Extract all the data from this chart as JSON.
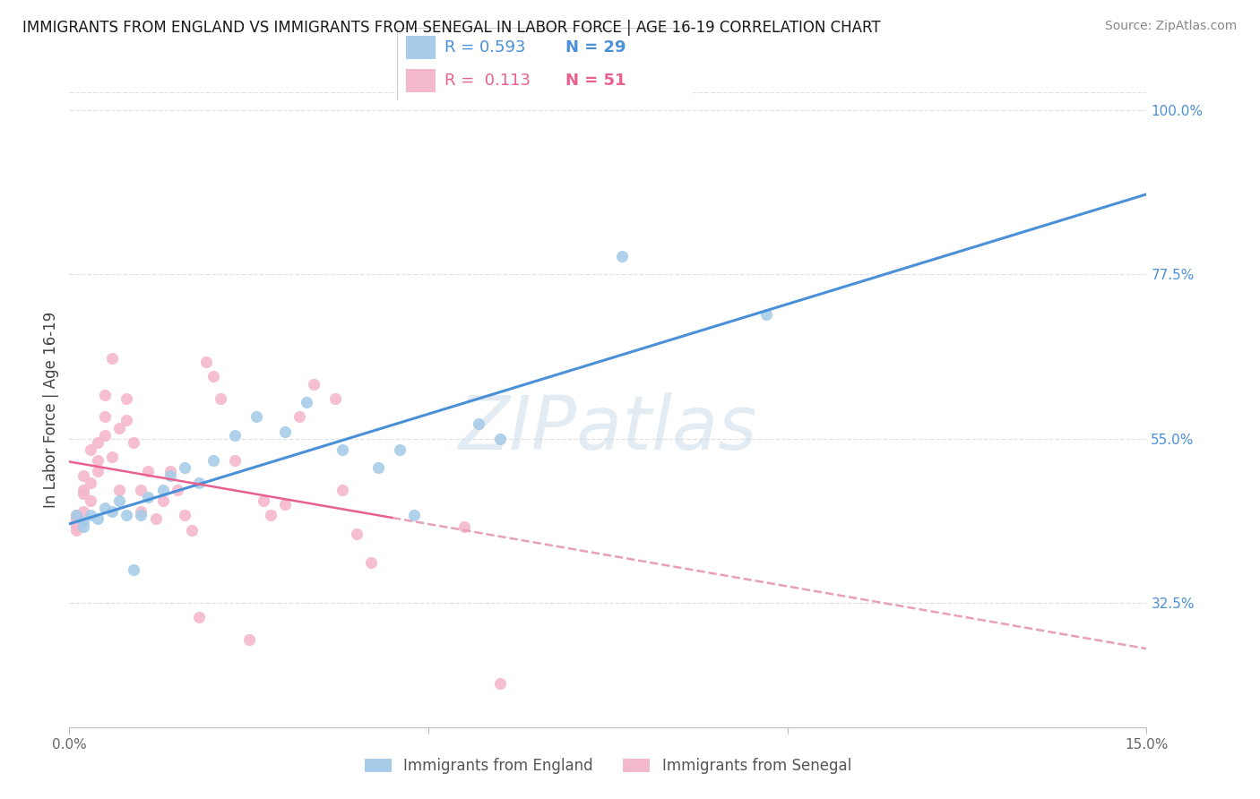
{
  "title": "IMMIGRANTS FROM ENGLAND VS IMMIGRANTS FROM SENEGAL IN LABOR FORCE | AGE 16-19 CORRELATION CHART",
  "source": "Source: ZipAtlas.com",
  "ylabel": "In Labor Force | Age 16-19",
  "xlim": [
    0.0,
    0.15
  ],
  "ylim": [
    0.155,
    1.025
  ],
  "xtick_positions": [
    0.0,
    0.05,
    0.1,
    0.15
  ],
  "xticklabels": [
    "0.0%",
    "",
    "",
    "15.0%"
  ],
  "ytick_positions": [
    0.325,
    0.55,
    0.775,
    1.0
  ],
  "yticklabels": [
    "32.5%",
    "55.0%",
    "77.5%",
    "100.0%"
  ],
  "england_color": "#a8cce8",
  "senegal_color": "#f4b8cc",
  "england_line_color": "#4a90d9",
  "senegal_line_color": "#e86090",
  "senegal_dash_color": "#e8a0b8",
  "R_england": 0.593,
  "N_england": 29,
  "R_senegal": 0.113,
  "N_senegal": 51,
  "england_scatter_x": [
    0.001,
    0.002,
    0.002,
    0.003,
    0.004,
    0.005,
    0.006,
    0.007,
    0.008,
    0.009,
    0.01,
    0.011,
    0.013,
    0.014,
    0.016,
    0.018,
    0.02,
    0.023,
    0.026,
    0.03,
    0.033,
    0.038,
    0.043,
    0.046,
    0.048,
    0.057,
    0.06,
    0.077,
    0.097
  ],
  "england_scatter_y": [
    0.445,
    0.435,
    0.43,
    0.445,
    0.44,
    0.455,
    0.45,
    0.465,
    0.445,
    0.37,
    0.445,
    0.47,
    0.48,
    0.5,
    0.51,
    0.49,
    0.52,
    0.555,
    0.58,
    0.56,
    0.6,
    0.535,
    0.51,
    0.535,
    0.445,
    0.57,
    0.55,
    0.8,
    0.72
  ],
  "senegal_scatter_x": [
    0.001,
    0.001,
    0.001,
    0.001,
    0.001,
    0.002,
    0.002,
    0.002,
    0.002,
    0.003,
    0.003,
    0.003,
    0.004,
    0.004,
    0.004,
    0.005,
    0.005,
    0.005,
    0.006,
    0.006,
    0.007,
    0.007,
    0.008,
    0.008,
    0.009,
    0.01,
    0.01,
    0.011,
    0.012,
    0.013,
    0.014,
    0.015,
    0.016,
    0.017,
    0.018,
    0.019,
    0.02,
    0.021,
    0.023,
    0.025,
    0.027,
    0.028,
    0.03,
    0.032,
    0.034,
    0.037,
    0.038,
    0.04,
    0.042,
    0.055,
    0.06
  ],
  "senegal_scatter_y": [
    0.445,
    0.44,
    0.435,
    0.43,
    0.425,
    0.48,
    0.5,
    0.475,
    0.45,
    0.535,
    0.49,
    0.465,
    0.545,
    0.52,
    0.505,
    0.61,
    0.58,
    0.555,
    0.525,
    0.66,
    0.565,
    0.48,
    0.605,
    0.575,
    0.545,
    0.48,
    0.45,
    0.505,
    0.44,
    0.465,
    0.505,
    0.48,
    0.445,
    0.425,
    0.305,
    0.655,
    0.635,
    0.605,
    0.52,
    0.275,
    0.465,
    0.445,
    0.46,
    0.58,
    0.625,
    0.605,
    0.48,
    0.42,
    0.38,
    0.43,
    0.215
  ],
  "watermark_text": "ZIPatlas",
  "background_color": "#ffffff",
  "grid_color": "#e0e0e0",
  "title_fontsize": 12,
  "tick_label_fontsize": 11,
  "scatter_size": 90
}
